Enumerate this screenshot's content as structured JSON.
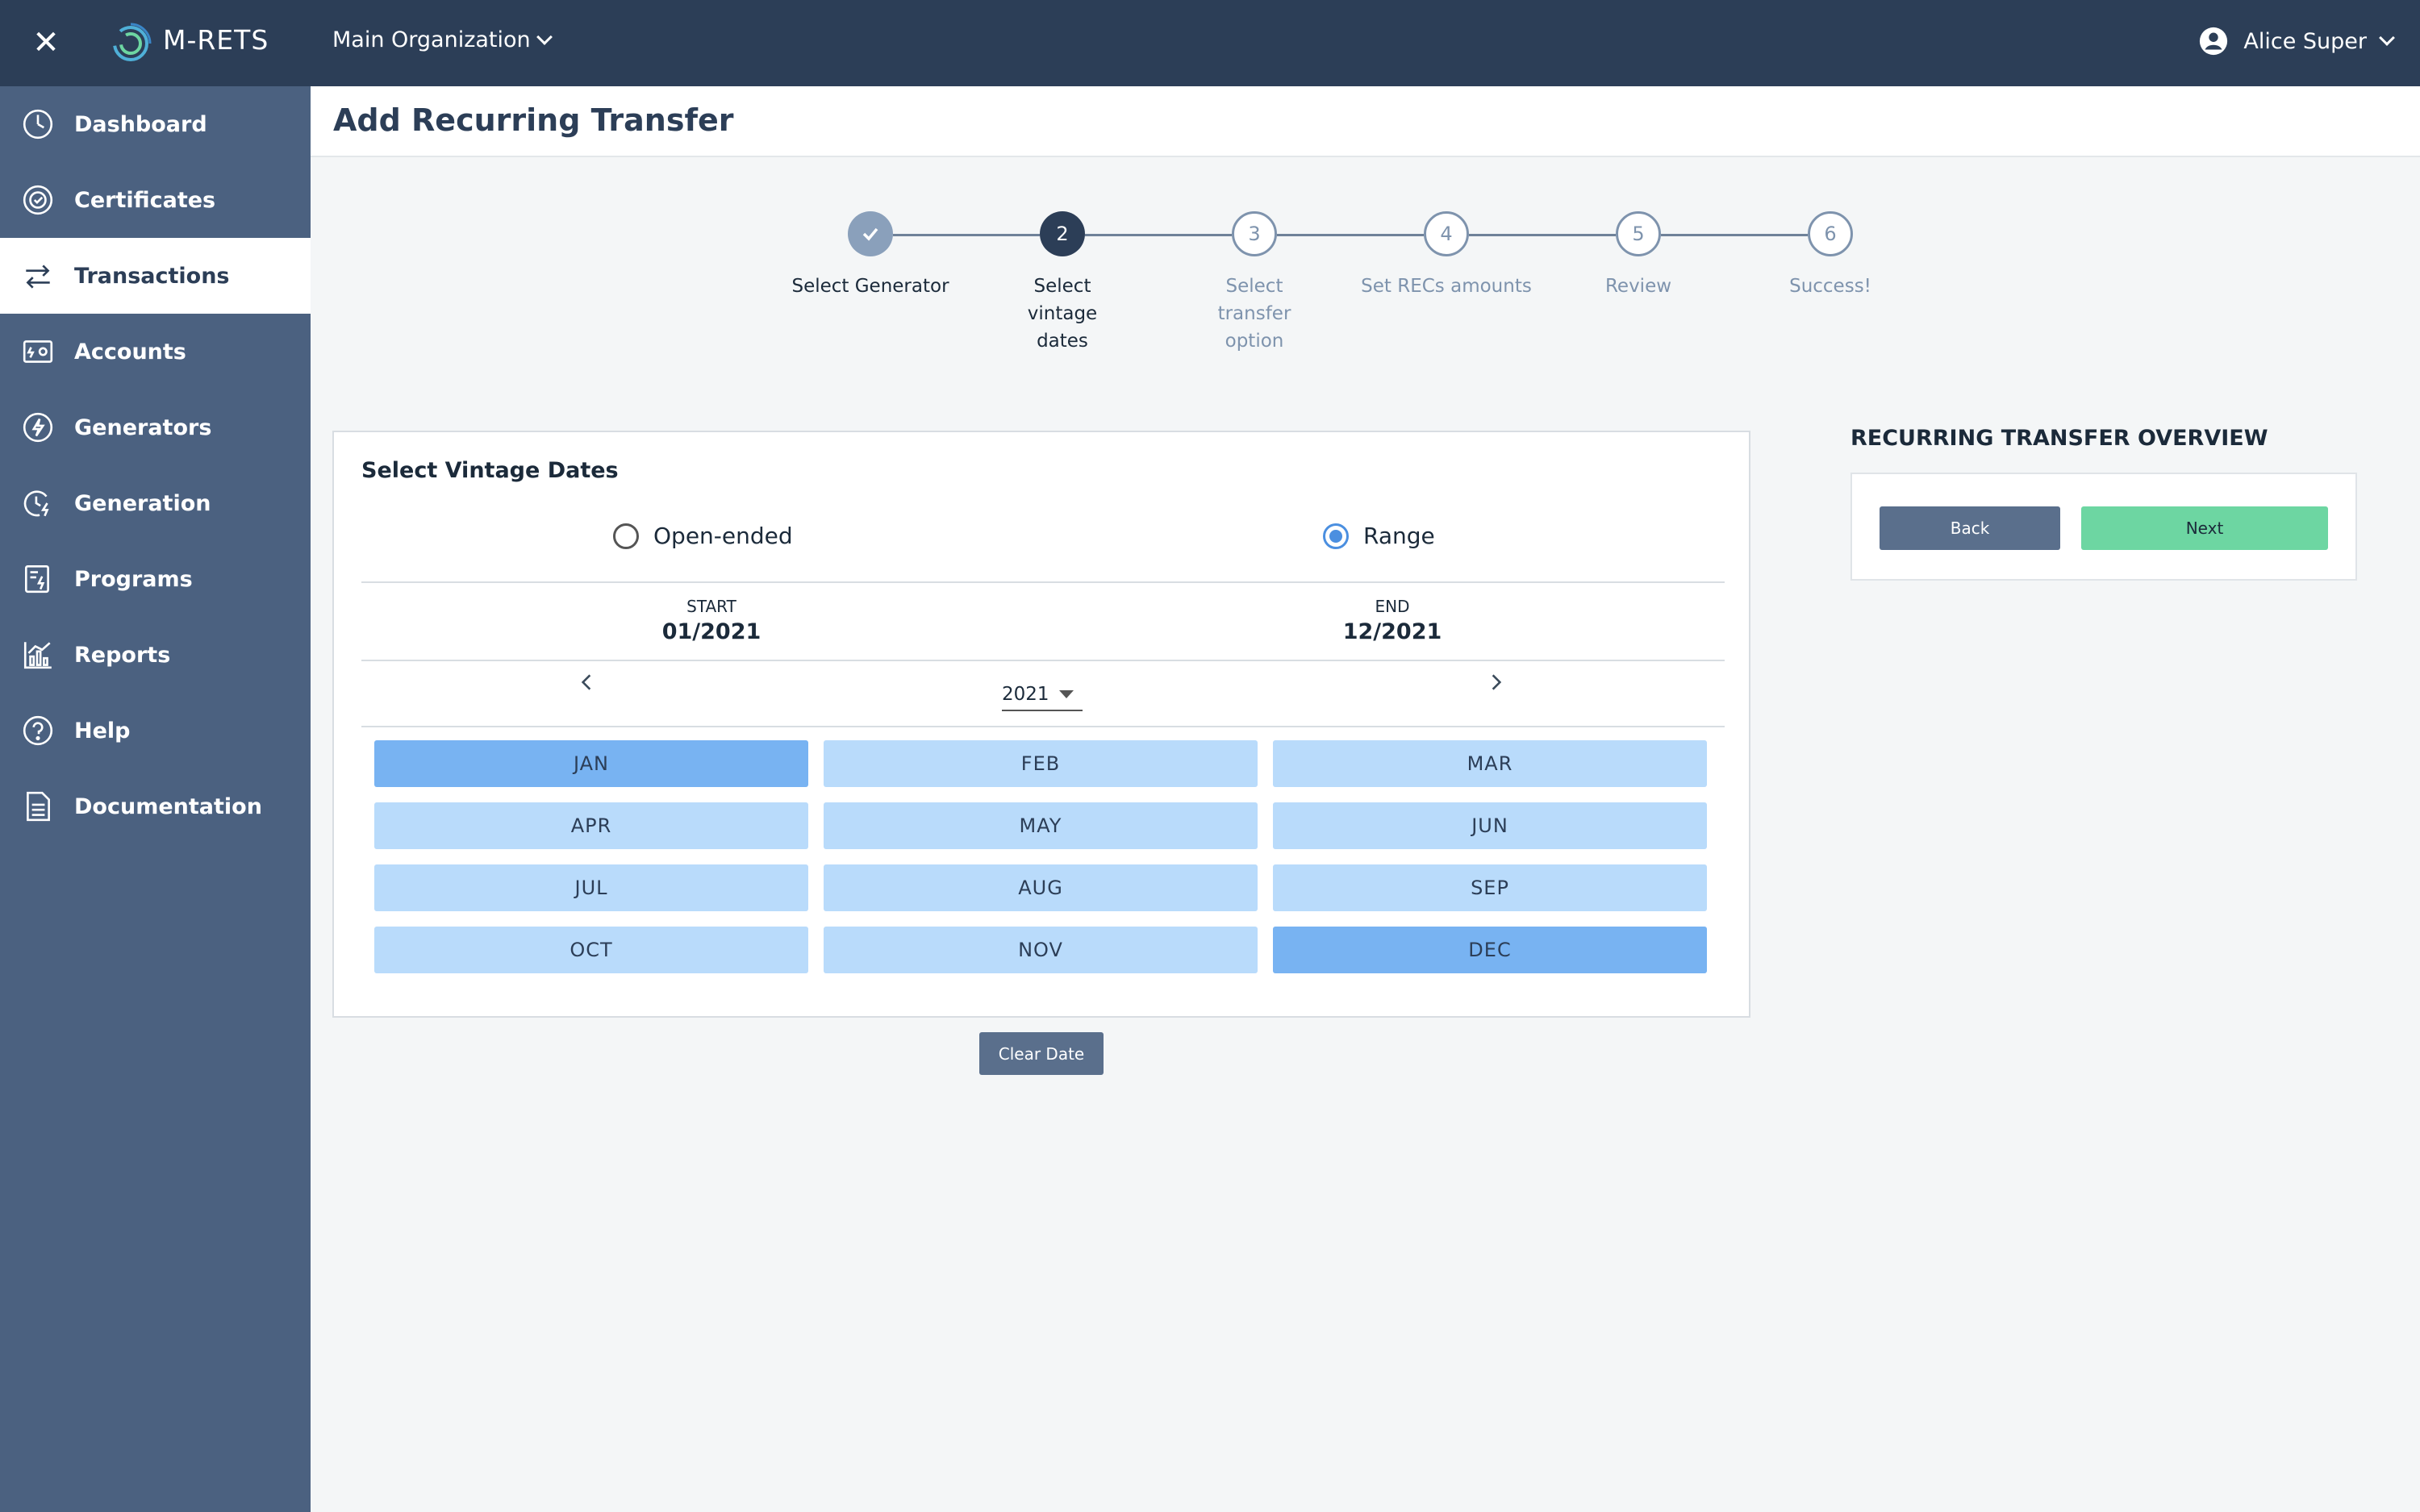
{
  "topbar": {
    "brand": "M-RETS",
    "organization": "Main Organization",
    "user_name": "Alice Super",
    "close_icon": "close-icon",
    "logo_icon": "m-rets-logo"
  },
  "sidebar": {
    "items": [
      {
        "label": "Dashboard",
        "icon": "dashboard-icon",
        "active": false
      },
      {
        "label": "Certificates",
        "icon": "certificate-icon",
        "active": false
      },
      {
        "label": "Transactions",
        "icon": "transactions-icon",
        "active": true
      },
      {
        "label": "Accounts",
        "icon": "accounts-icon",
        "active": false
      },
      {
        "label": "Generators",
        "icon": "generators-icon",
        "active": false
      },
      {
        "label": "Generation",
        "icon": "generation-icon",
        "active": false
      },
      {
        "label": "Programs",
        "icon": "programs-icon",
        "active": false
      },
      {
        "label": "Reports",
        "icon": "reports-icon",
        "active": false
      },
      {
        "label": "Help",
        "icon": "help-icon",
        "active": false
      },
      {
        "label": "Documentation",
        "icon": "documentation-icon",
        "active": false
      }
    ]
  },
  "page": {
    "title": "Add Recurring Transfer"
  },
  "stepper": {
    "steps": [
      {
        "number": "",
        "label": "Select Generator",
        "state": "done"
      },
      {
        "number": "2",
        "label": "Select vintage dates",
        "state": "current"
      },
      {
        "number": "3",
        "label": "Select transfer option",
        "state": "todo"
      },
      {
        "number": "4",
        "label": "Set RECs amounts",
        "state": "todo"
      },
      {
        "number": "5",
        "label": "Review",
        "state": "todo"
      },
      {
        "number": "6",
        "label": "Success!",
        "state": "todo"
      }
    ]
  },
  "vintage": {
    "title": "Select Vintage Dates",
    "options": [
      {
        "label": "Open-ended",
        "checked": false
      },
      {
        "label": "Range",
        "checked": true
      }
    ],
    "start_label": "START",
    "start_value": "01/2021",
    "end_label": "END",
    "end_value": "12/2021",
    "year": "2021",
    "months": [
      {
        "label": "JAN",
        "selected": true
      },
      {
        "label": "FEB",
        "selected": false
      },
      {
        "label": "MAR",
        "selected": false
      },
      {
        "label": "APR",
        "selected": false
      },
      {
        "label": "MAY",
        "selected": false
      },
      {
        "label": "JUN",
        "selected": false
      },
      {
        "label": "JUL",
        "selected": false
      },
      {
        "label": "AUG",
        "selected": false
      },
      {
        "label": "SEP",
        "selected": false
      },
      {
        "label": "OCT",
        "selected": false
      },
      {
        "label": "NOV",
        "selected": false
      },
      {
        "label": "DEC",
        "selected": true
      }
    ],
    "clear_label": "Clear Date"
  },
  "overview": {
    "title": "RECURRING TRANSFER OVERVIEW",
    "back_label": "Back",
    "next_label": "Next"
  },
  "colors": {
    "topbar": "#2c3e57",
    "sidebar": "#4b6180",
    "month_selected": "#78b3f2",
    "month_default": "#b9dbfb",
    "next_button": "#6dd6a2",
    "accent_radio": "#4b8fe0"
  }
}
